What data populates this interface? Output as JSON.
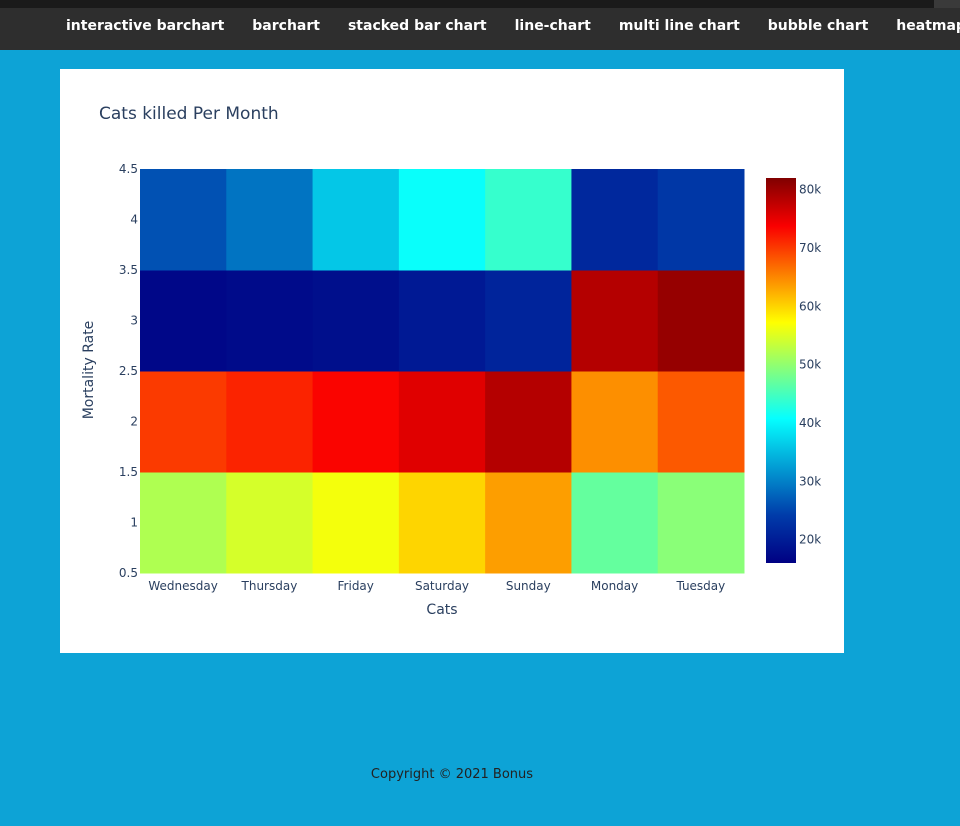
{
  "nav": {
    "items": [
      {
        "label": "interactive barchart"
      },
      {
        "label": "barchart"
      },
      {
        "label": "stacked bar chart"
      },
      {
        "label": "line-chart"
      },
      {
        "label": "multi line chart"
      },
      {
        "label": "bubble chart"
      },
      {
        "label": "heatmap"
      }
    ]
  },
  "footer": {
    "text": "Copyright © 2021 Bonus"
  },
  "colors": {
    "background": "#0da3d6",
    "navbar": "#2e2e2e",
    "card": "#ffffff",
    "text": "#2a3f5f"
  },
  "chart_data": {
    "type": "heatmap",
    "title": "Cats killed Per Month",
    "xlabel": "Cats",
    "ylabel": "Mortality Rate",
    "x": [
      "Wednesday",
      "Thursday",
      "Friday",
      "Saturday",
      "Sunday",
      "Monday",
      "Tuesday"
    ],
    "y": [
      1,
      2,
      3,
      4
    ],
    "y_ticks": [
      "0.5",
      "1",
      "1.5",
      "2",
      "2.5",
      "3",
      "3.5",
      "4",
      "4.5"
    ],
    "ylim": [
      0.5,
      4.5
    ],
    "z": [
      [
        52000,
        54500,
        56500,
        60000,
        63500,
        47000,
        49500
      ],
      [
        70000,
        71500,
        73500,
        75500,
        78500,
        64500,
        68000
      ],
      [
        17000,
        17500,
        18000,
        19500,
        21000,
        78500,
        80500
      ],
      [
        26000,
        29000,
        36000,
        41000,
        44000,
        21500,
        23500
      ]
    ],
    "colorscale": "Jet",
    "zmin": 16000,
    "zmax": 82000,
    "colorbar_ticks": [
      "20k",
      "30k",
      "40k",
      "50k",
      "60k",
      "70k",
      "80k"
    ],
    "colorbar_tick_values": [
      20000,
      30000,
      40000,
      50000,
      60000,
      70000,
      80000
    ]
  }
}
